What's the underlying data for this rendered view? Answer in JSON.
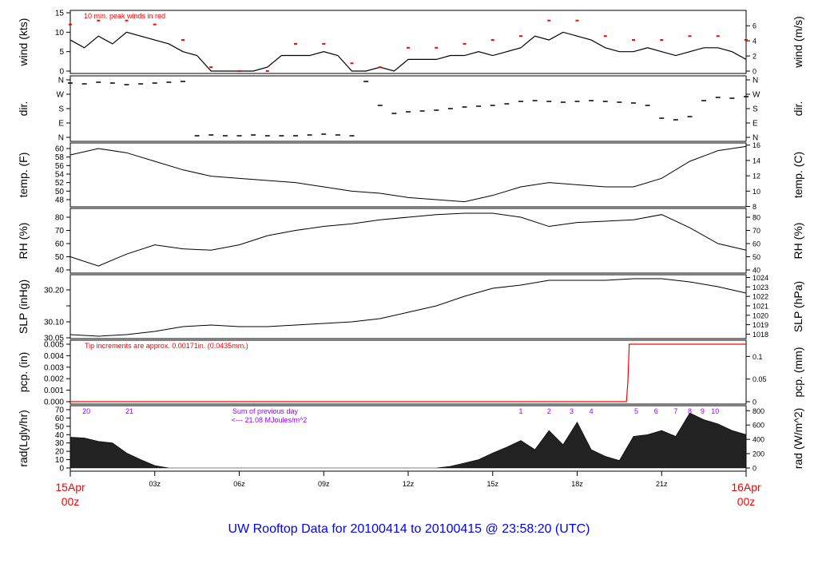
{
  "title": "UW Rooftop Data for 20100414  to  20100415 @ 23:58:20  (UTC)",
  "colors": {
    "line": "#000000",
    "peak": "#ff0000",
    "annotation": "#9900ff",
    "title": "#0000ff",
    "date": "#ff0000"
  },
  "x_axis": {
    "start": {
      "date": "15Apr",
      "time": "00z"
    },
    "end": {
      "date": "16Apr",
      "time": "00z"
    },
    "ticks": [
      {
        "h": 3,
        "label": "03z"
      },
      {
        "h": 6,
        "label": "06z"
      },
      {
        "h": 9,
        "label": "09z"
      },
      {
        "h": 12,
        "label": "12z"
      },
      {
        "h": 15,
        "label": "15z"
      },
      {
        "h": 18,
        "label": "18z"
      },
      {
        "h": 21,
        "label": "21z"
      }
    ],
    "range_hours": [
      0,
      24
    ]
  },
  "chart_data": [
    {
      "type": "line",
      "id": "wind",
      "ylabel": "wind (kts)",
      "ylabel_right": "wind (m/s)",
      "ylim": [
        0,
        15
      ],
      "yticks": [
        {
          "v": 0,
          "label": "0"
        },
        {
          "v": 5,
          "label": "5"
        },
        {
          "v": 10,
          "label": "10"
        },
        {
          "v": 15,
          "label": "15"
        }
      ],
      "yticks_right": [
        {
          "v": 0,
          "label": "0"
        },
        {
          "v": 2,
          "label": "2"
        },
        {
          "v": 4,
          "label": "4"
        },
        {
          "v": 6,
          "label": "6"
        }
      ],
      "annotation": "10 min. peak winds in red",
      "x_step_hours": 0.5,
      "series": [
        {
          "values": [
            8,
            6,
            9,
            7,
            10,
            9,
            8,
            7,
            5,
            4,
            0,
            0,
            0,
            0,
            1,
            4,
            4,
            4,
            5,
            4,
            0,
            0,
            1,
            0,
            3,
            3,
            3,
            4,
            4,
            5,
            4,
            5,
            6,
            9,
            8,
            10,
            9,
            8,
            6,
            5,
            5,
            6,
            5,
            4,
            5,
            6,
            6,
            5,
            3
          ]
        },
        {
          "name": "10 min. peak winds",
          "x_step_hours": 1,
          "values": [
            12,
            13,
            13,
            12,
            8,
            1,
            0,
            0,
            7,
            7,
            2,
            1,
            6,
            6,
            7,
            8,
            9,
            13,
            13,
            9,
            8,
            8,
            9,
            9,
            8
          ]
        }
      ]
    },
    {
      "type": "scatter",
      "id": "dir",
      "ylabel": "dir.",
      "ylabel_right": "dir.",
      "ylim": [
        0,
        360
      ],
      "yticks": [
        {
          "v": 0,
          "label": "N"
        },
        {
          "v": 90,
          "label": "E"
        },
        {
          "v": 180,
          "label": "S"
        },
        {
          "v": 270,
          "label": "W"
        },
        {
          "v": 360,
          "label": "N"
        }
      ],
      "x_step_hours": 0.5,
      "values": [
        340,
        335,
        345,
        340,
        330,
        335,
        340,
        345,
        350,
        10,
        15,
        10,
        10,
        15,
        10,
        10,
        10,
        15,
        20,
        15,
        10,
        350,
        200,
        150,
        160,
        165,
        170,
        180,
        190,
        195,
        200,
        210,
        225,
        230,
        225,
        220,
        225,
        230,
        225,
        220,
        215,
        200,
        120,
        110,
        130,
        230,
        250,
        245,
        255
      ]
    },
    {
      "type": "line",
      "id": "temp",
      "ylabel": "temp. (F)",
      "ylabel_right": "temp. (C)",
      "ylim": [
        48,
        60
      ],
      "yticks": [
        {
          "v": 48,
          "label": "48"
        },
        {
          "v": 50,
          "label": "50"
        },
        {
          "v": 52,
          "label": "52"
        },
        {
          "v": 54,
          "label": "54"
        },
        {
          "v": 56,
          "label": "56"
        },
        {
          "v": 58,
          "label": "58"
        },
        {
          "v": 60,
          "label": "60"
        }
      ],
      "yticks_right": [
        {
          "v": 8,
          "label": "8"
        },
        {
          "v": 10,
          "label": "10"
        },
        {
          "v": 12,
          "label": "12"
        },
        {
          "v": 14,
          "label": "14"
        },
        {
          "v": 16,
          "label": "16"
        }
      ],
      "x_step_hours": 1,
      "values": [
        58.5,
        60,
        59,
        57,
        55,
        53.5,
        53,
        52.5,
        52,
        51,
        50,
        49.5,
        48.5,
        48,
        47.5,
        49,
        51,
        52,
        51.5,
        51,
        51,
        53,
        57,
        59.5,
        60.5
      ]
    },
    {
      "type": "line",
      "id": "rh",
      "ylabel": "RH (%)",
      "ylabel_right": "RH (%)",
      "ylim": [
        40,
        80
      ],
      "yticks": [
        {
          "v": 40,
          "label": "40"
        },
        {
          "v": 50,
          "label": "50"
        },
        {
          "v": 60,
          "label": "60"
        },
        {
          "v": 70,
          "label": "70"
        },
        {
          "v": 80,
          "label": "80"
        }
      ],
      "yticks_right": [
        {
          "v": 40,
          "label": "40"
        },
        {
          "v": 50,
          "label": "50"
        },
        {
          "v": 60,
          "label": "60"
        },
        {
          "v": 70,
          "label": "70"
        },
        {
          "v": 80,
          "label": "80"
        }
      ],
      "x_step_hours": 1,
      "values": [
        50,
        43,
        52,
        59,
        56,
        55,
        59,
        66,
        70,
        73,
        75,
        78,
        80,
        82,
        83,
        83,
        80,
        73,
        76,
        77,
        78,
        82,
        72,
        60,
        55
      ]
    },
    {
      "type": "line",
      "id": "slp",
      "ylabel": "SLP (inHg)",
      "ylabel_right": "SLP (hPa)",
      "ylim": [
        30.05,
        30.2
      ],
      "yticks": [
        {
          "v": 30.05,
          "label": "30.05"
        },
        {
          "v": 30.1,
          "label": "30.10"
        },
        {
          "v": 30.15,
          "label": ""
        },
        {
          "v": 30.2,
          "label": "30.20"
        }
      ],
      "yticks_right": [
        {
          "v": 1018,
          "label": "1018"
        },
        {
          "v": 1019,
          "label": "1019"
        },
        {
          "v": 1020,
          "label": "1020"
        },
        {
          "v": 1021,
          "label": "1021"
        },
        {
          "v": 1022,
          "label": "1022"
        },
        {
          "v": 1023,
          "label": "1023"
        },
        {
          "v": 1024,
          "label": "1024"
        }
      ],
      "x_step_hours": 1,
      "values": [
        30.06,
        30.055,
        30.06,
        30.07,
        30.085,
        30.09,
        30.085,
        30.085,
        30.09,
        30.095,
        30.1,
        30.11,
        30.13,
        30.15,
        30.18,
        30.205,
        30.215,
        30.23,
        30.23,
        30.23,
        30.235,
        30.235,
        30.225,
        30.21,
        30.19
      ]
    },
    {
      "type": "line",
      "id": "pcp",
      "ylabel": "pcp. (in)",
      "ylabel_right": "pcp. (mm)",
      "ylim": [
        0,
        0.005
      ],
      "yticks": [
        {
          "v": 0,
          "label": "0.000"
        },
        {
          "v": 0.001,
          "label": "0.001"
        },
        {
          "v": 0.002,
          "label": "0.002"
        },
        {
          "v": 0.003,
          "label": "0.003"
        },
        {
          "v": 0.004,
          "label": "0.004"
        },
        {
          "v": 0.005,
          "label": "0.005"
        }
      ],
      "yticks_right": [
        {
          "v": 0,
          "label": "0"
        },
        {
          "v": 0.05,
          "label": "0.05"
        },
        {
          "v": 0.1,
          "label": "0.1"
        }
      ],
      "annotation": "Tip increments are approx. 0.00171in. (0.0435mm.)",
      "points": [
        [
          0,
          0
        ],
        [
          19.75,
          0
        ],
        [
          19.8,
          0.0017
        ],
        [
          19.85,
          0.005
        ],
        [
          24,
          0.005
        ]
      ]
    },
    {
      "type": "area",
      "id": "rad",
      "ylabel": "rad(Lgly/hr)",
      "ylabel_right": "rad (W/m^2)",
      "ylim": [
        0,
        70
      ],
      "yticks": [
        {
          "v": 0,
          "label": "0"
        },
        {
          "v": 10,
          "label": "10"
        },
        {
          "v": 20,
          "label": "20"
        },
        {
          "v": 30,
          "label": "30"
        },
        {
          "v": 40,
          "label": "40"
        },
        {
          "v": 50,
          "label": "50"
        },
        {
          "v": 60,
          "label": "60"
        },
        {
          "v": 70,
          "label": "70"
        }
      ],
      "yticks_right": [
        {
          "v": 0,
          "label": "0"
        },
        {
          "v": 200,
          "label": "200"
        },
        {
          "v": 400,
          "label": "400"
        },
        {
          "v": 600,
          "label": "600"
        },
        {
          "v": 800,
          "label": "800"
        }
      ],
      "annotation_lines": [
        "Sum of previous day",
        "<--- 21.08 MJoules/m^2"
      ],
      "cumulative_markers": [
        {
          "h": 0.57,
          "label": "20"
        },
        {
          "h": 2.1,
          "label": "21"
        },
        {
          "h": 16,
          "label": "1"
        },
        {
          "h": 17,
          "label": "2"
        },
        {
          "h": 17.8,
          "label": "3"
        },
        {
          "h": 18.5,
          "label": "4"
        },
        {
          "h": 20.1,
          "label": "5"
        },
        {
          "h": 20.8,
          "label": "6"
        },
        {
          "h": 21.5,
          "label": "7"
        },
        {
          "h": 22,
          "label": "8"
        },
        {
          "h": 22.45,
          "label": "9"
        },
        {
          "h": 22.9,
          "label": "10"
        }
      ],
      "x_step_hours": 0.5,
      "values": [
        37,
        36,
        32,
        30,
        18,
        10,
        3,
        0,
        0,
        0,
        0,
        0,
        0,
        0,
        0,
        0,
        0,
        0,
        0,
        0,
        0,
        0,
        0,
        0,
        0,
        0,
        0,
        2,
        6,
        10,
        18,
        25,
        33,
        22,
        45,
        28,
        55,
        22,
        14,
        9,
        38,
        40,
        45,
        38,
        66,
        58,
        53,
        45,
        40
      ]
    }
  ]
}
